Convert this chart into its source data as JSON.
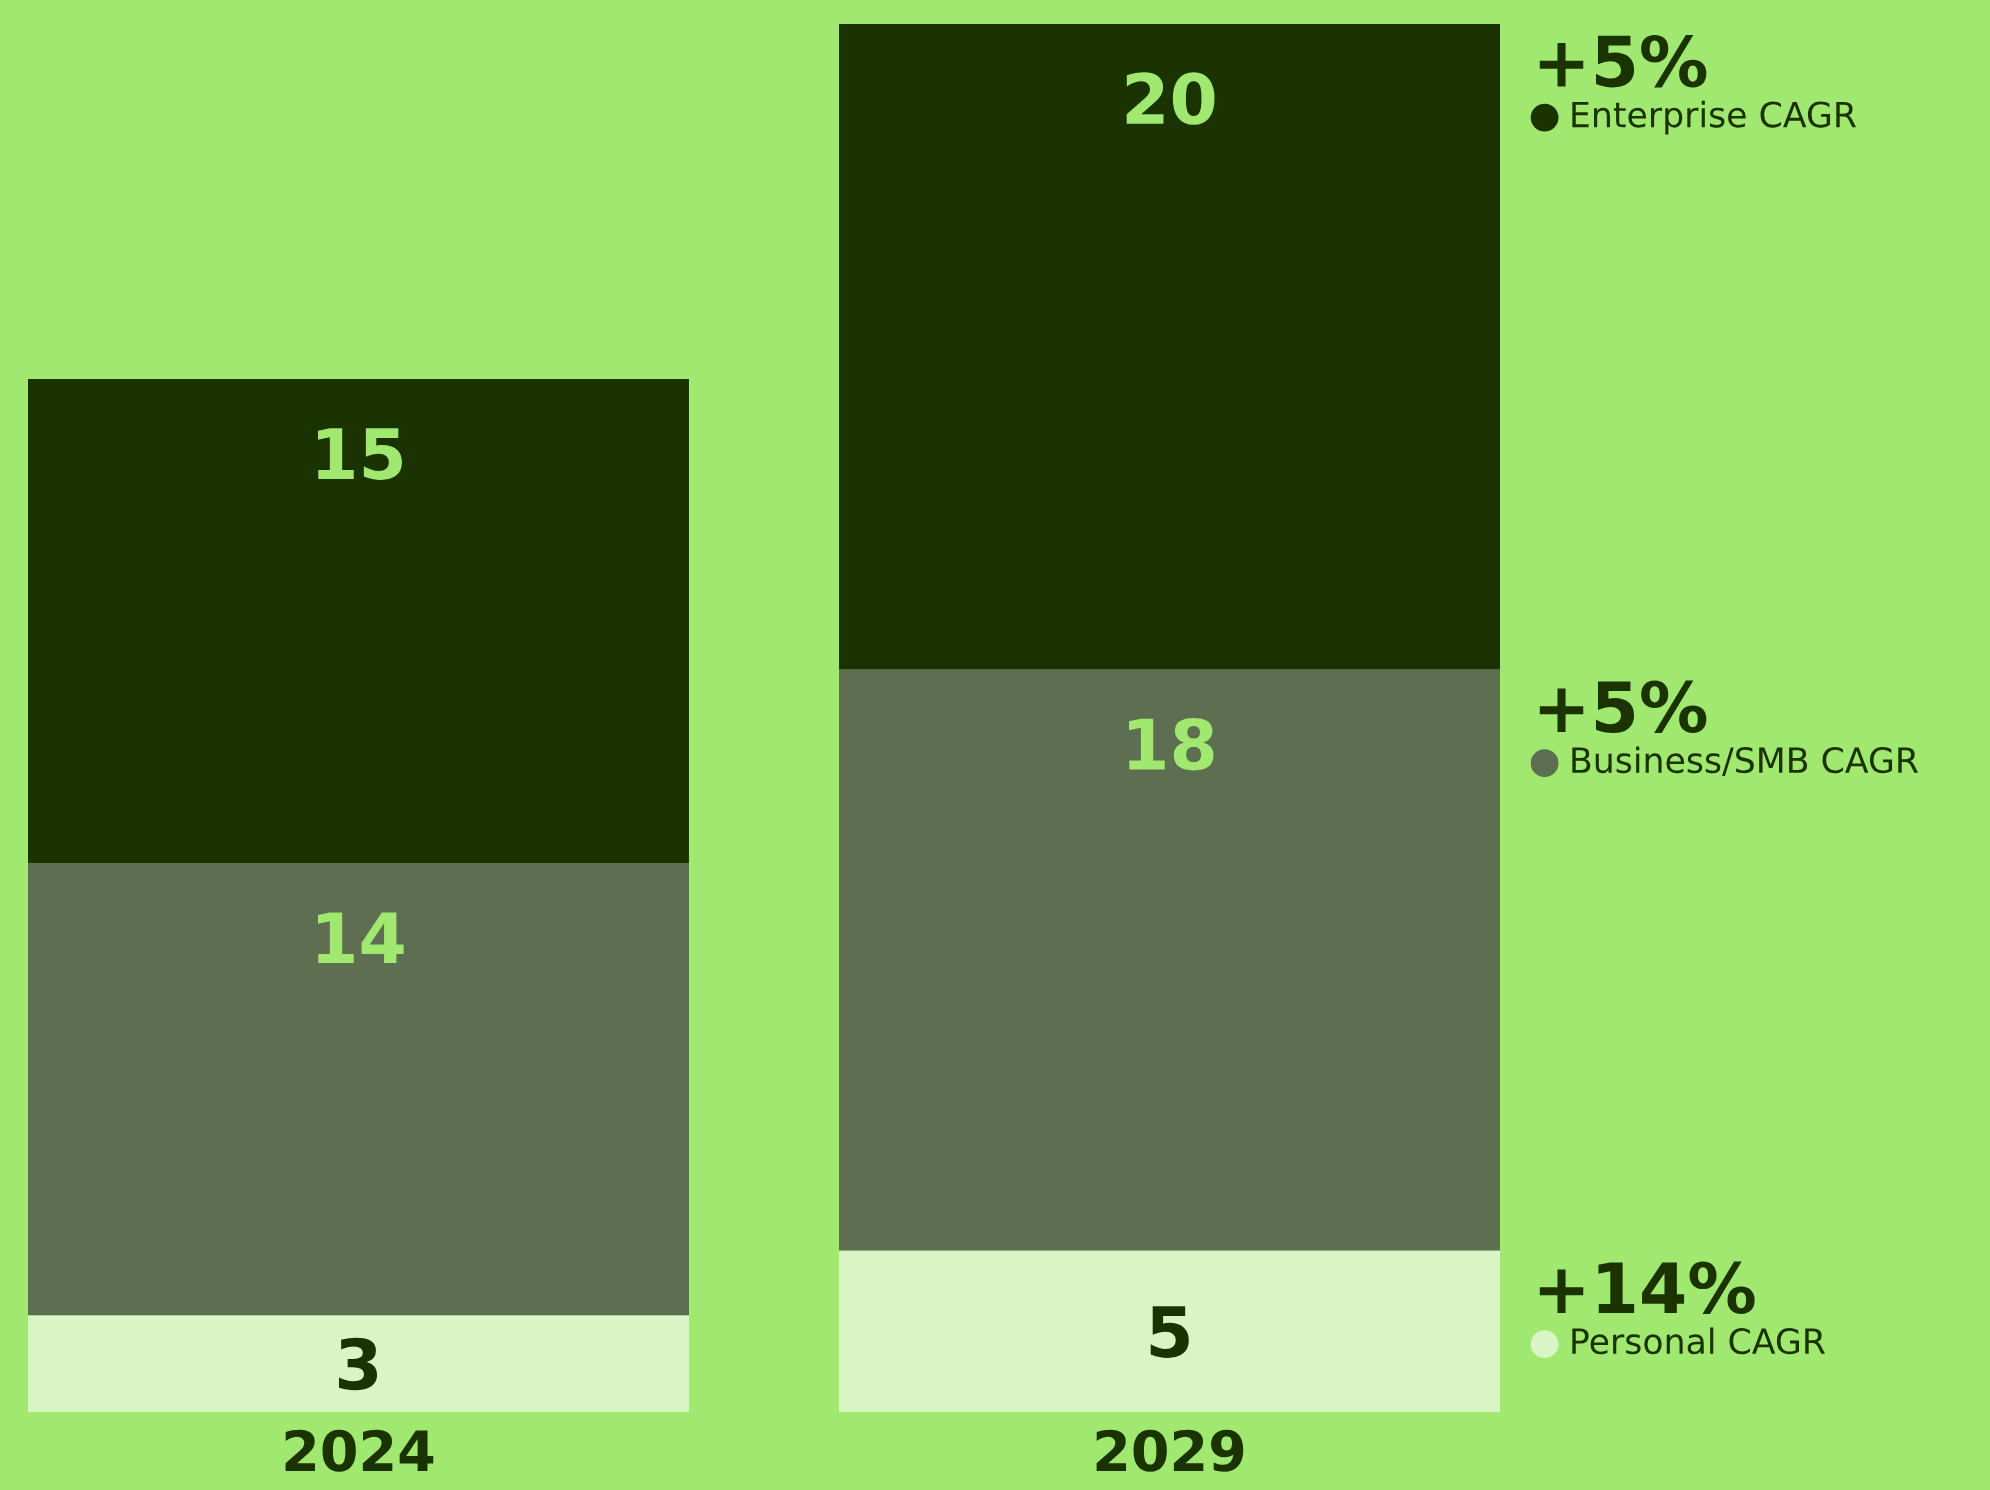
{
  "chart_data": {
    "type": "bar",
    "stacked": true,
    "categories": [
      "2024",
      "2029"
    ],
    "series": [
      {
        "name": "Personal CAGR",
        "color": "#d9f5c5",
        "values": [
          3,
          5
        ]
      },
      {
        "name": "Business/SMB CAGR",
        "color": "#5e6e50",
        "values": [
          14,
          18
        ]
      },
      {
        "name": "Enterprise CAGR",
        "color": "#1a3300",
        "values": [
          15,
          20
        ]
      }
    ],
    "data_labels": true,
    "legend": "right",
    "marker": "circle",
    "annotations": [
      "+14%",
      "+5%",
      "+5%"
    ]
  }
}
